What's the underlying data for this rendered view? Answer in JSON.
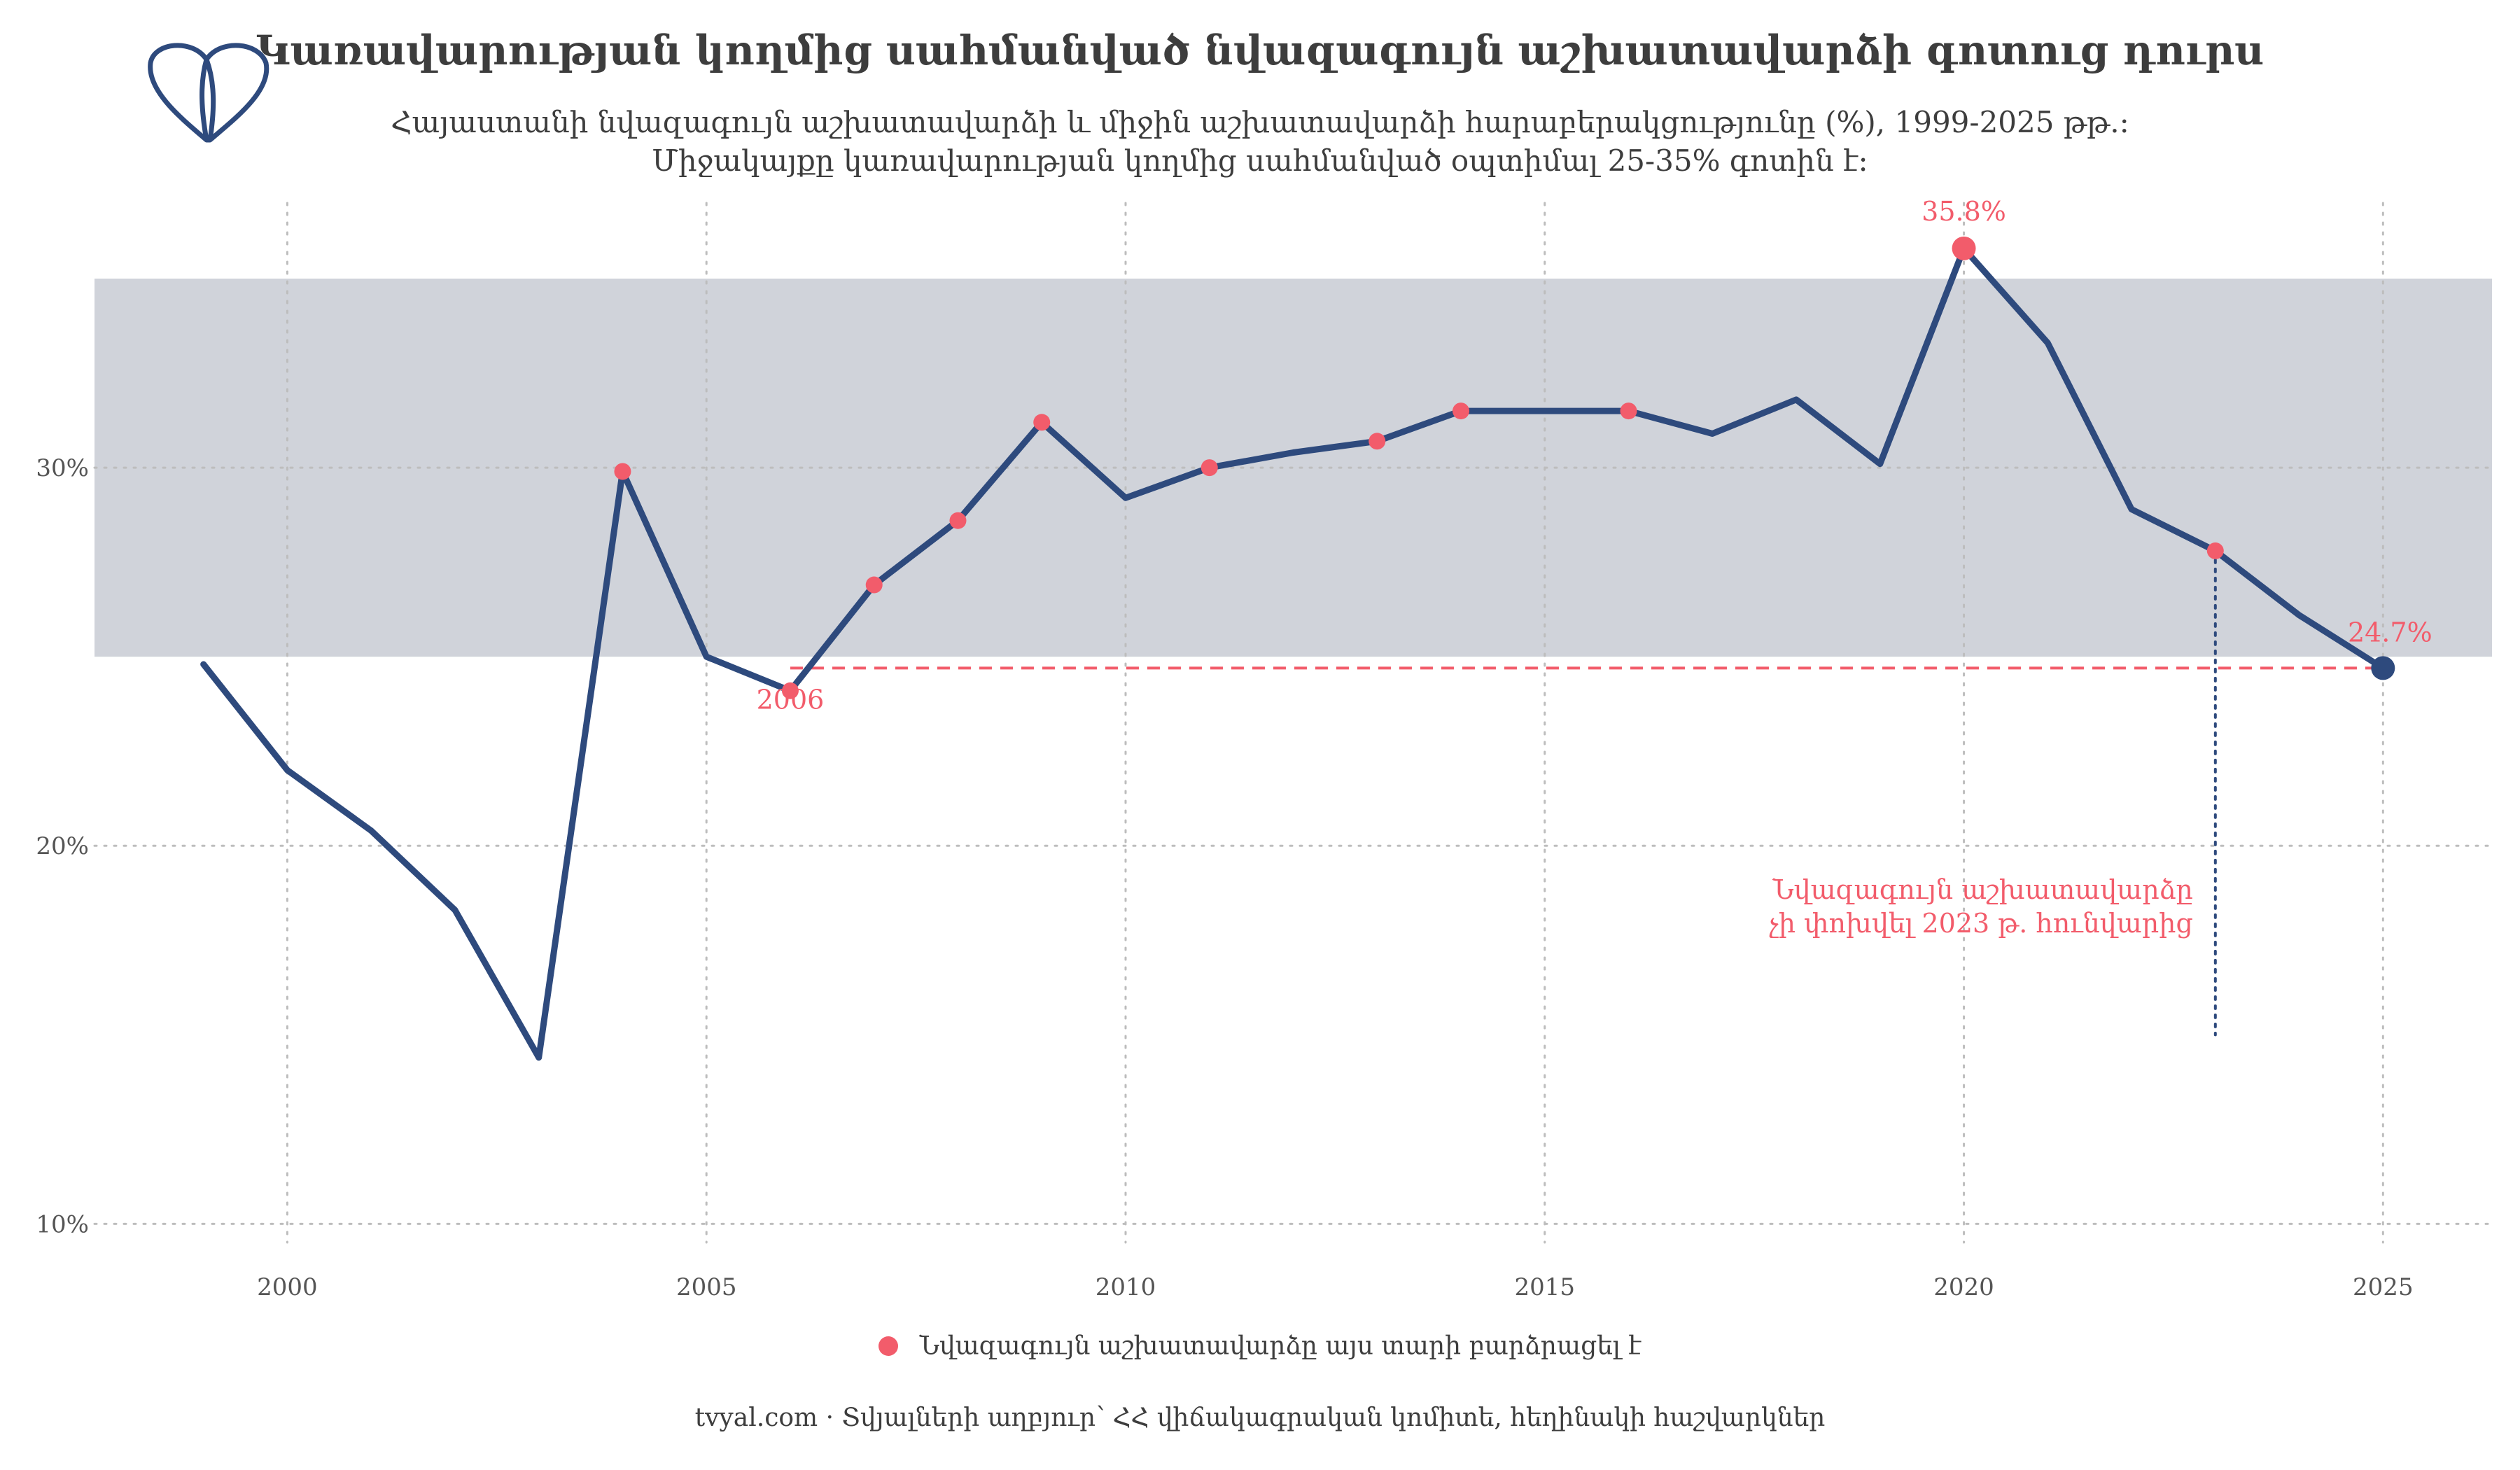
{
  "header": {
    "title": "Կառավարության կողմից սահմանված նվազագույն աշխատավարձի գոտուց դուրս",
    "subtitle_line1": "Հայաստանի նվազագույն աշխատավարձի և միջին աշխատավարձի հարաբերակցությունը (%), 1999-2025 թթ.:",
    "subtitle_line2": "Միջակայքը կառավարության կողմից սահմանված օպտիմալ 25-35% գոտին է:"
  },
  "logo": {
    "icon": "tvyal-logo-icon"
  },
  "legend": {
    "label": "Նվազագույն աշխատավարձը այս տարի բարձրացել է"
  },
  "caption": {
    "text": "tvyal.com  ·  Տվյալների աղբյուր՝ ՀՀ վիճակագրական կոմիտե, հեղինակի հաշվարկներ"
  },
  "colors": {
    "line": "#2e4a7d",
    "raised_point": "#f25c6b",
    "band": "#d0d3da",
    "annotation": "#f25c6b",
    "last_point": "#2e4a7d"
  },
  "chart_data": {
    "type": "line",
    "title": "Կառավարության կողմից սահմանված նվազագույն աշխատավարձի գոտուց դուրս",
    "xlabel": "",
    "ylabel": "",
    "xlim": [
      1997.7,
      2026.3
    ],
    "ylim": [
      9.6,
      37
    ],
    "xticks": [
      2000,
      2005,
      2010,
      2015,
      2020,
      2025
    ],
    "yticks": [
      10,
      20,
      30
    ],
    "ytick_labels": [
      "10%",
      "20%",
      "30%"
    ],
    "grid": true,
    "legend_position": "bottom",
    "optimal_band": [
      25,
      35
    ],
    "x": [
      1999,
      2000,
      2001,
      2002,
      2003,
      2004,
      2005,
      2006,
      2007,
      2008,
      2009,
      2010,
      2011,
      2012,
      2013,
      2014,
      2015,
      2016,
      2017,
      2018,
      2019,
      2020,
      2021,
      2022,
      2023,
      2024,
      2025
    ],
    "y": [
      24.8,
      22.0,
      20.4,
      18.3,
      14.4,
      29.9,
      25.0,
      24.1,
      26.9,
      28.6,
      31.2,
      29.2,
      30.0,
      30.4,
      30.7,
      31.5,
      31.5,
      31.5,
      30.9,
      31.8,
      30.1,
      35.8,
      33.3,
      28.9,
      27.8,
      26.1,
      24.7
    ],
    "raised": [
      false,
      false,
      false,
      false,
      false,
      true,
      false,
      true,
      true,
      true,
      true,
      false,
      true,
      false,
      true,
      true,
      false,
      true,
      false,
      false,
      false,
      true,
      false,
      false,
      true,
      false,
      false
    ],
    "reference_line": {
      "value": 24.7,
      "from": 2006,
      "to": 2025
    },
    "vertical_marker": {
      "x": 2023,
      "from": 15.0,
      "to": 27.8
    },
    "annotations": {
      "max_label": "35.8%",
      "last_label": "24.7%",
      "year_label": "2006",
      "note_line1": "Նվազագույն աշխատավարձը",
      "note_line2": "չի փոխվել 2023 թ. հունվարից"
    }
  }
}
